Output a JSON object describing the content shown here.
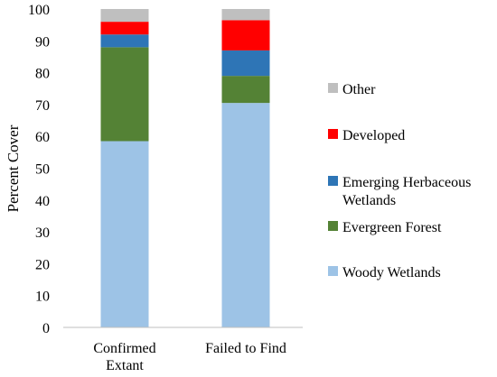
{
  "chart_data": {
    "type": "bar",
    "stacked": true,
    "title": "",
    "xlabel": "",
    "ylabel": "Percent Cover",
    "ylim": [
      0,
      100
    ],
    "yticks": [
      0,
      10,
      20,
      30,
      40,
      50,
      60,
      70,
      80,
      90,
      100
    ],
    "grid": false,
    "legend_position": "right",
    "categories": [
      [
        "Confirmed",
        "Extant"
      ],
      [
        "Failed to Find"
      ]
    ],
    "series": [
      {
        "name": "Woody Wetlands",
        "color": "#9DC3E6",
        "values": [
          58.5,
          70.5
        ]
      },
      {
        "name": "Evergreen Forest",
        "color": "#548235",
        "values": [
          29.5,
          8.5
        ]
      },
      {
        "name": "Emerging Herbaceous Wetlands",
        "color": "#2E75B6",
        "values": [
          4.0,
          8.0
        ]
      },
      {
        "name": "Developed",
        "color": "#FF0000",
        "values": [
          4.0,
          9.5
        ]
      },
      {
        "name": "Other",
        "color": "#BFBFBF",
        "values": [
          4.0,
          3.5
        ]
      }
    ],
    "legend_order": [
      "Other",
      "Developed",
      "Emerging Herbaceous Wetlands",
      "Evergreen Forest",
      "Woody Wetlands"
    ],
    "legend_lines": {
      "Other": [
        "Other"
      ],
      "Developed": [
        "Developed"
      ],
      "Emerging Herbaceous Wetlands": [
        "Emerging Herbaceous",
        "Wetlands"
      ],
      "Evergreen Forest": [
        "Evergreen Forest"
      ],
      "Woody Wetlands": [
        "Woody Wetlands"
      ]
    }
  }
}
